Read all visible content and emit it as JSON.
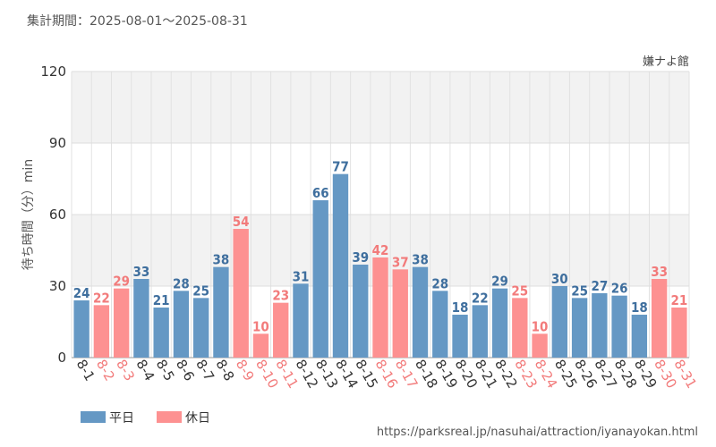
{
  "header": {
    "period_label": "集計期間：2025-08-01～2025-08-31",
    "attraction": "嫌ナよ館",
    "source_url": "https://parksreal.jp/nasuhai/attraction/iyanayokan.html"
  },
  "legend": {
    "weekday": "平日",
    "holiday": "休日"
  },
  "colors": {
    "weekday_bar": "#6598c4",
    "holiday_bar": "#fd9191",
    "weekday_text": "#3f6f9e",
    "holiday_text": "#f27b7b"
  },
  "chart_data": {
    "type": "bar",
    "ylabel": "待ち時間（分）min",
    "ylim": [
      0,
      120
    ],
    "yticks": [
      0,
      30,
      60,
      90,
      120
    ],
    "grid": true,
    "legend_position": "bottom-left",
    "categories": [
      "8-1",
      "8-2",
      "8-3",
      "8-4",
      "8-5",
      "8-6",
      "8-7",
      "8-8",
      "8-9",
      "8-10",
      "8-11",
      "8-12",
      "8-13",
      "8-14",
      "8-15",
      "8-16",
      "8-17",
      "8-18",
      "8-19",
      "8-20",
      "8-21",
      "8-22",
      "8-23",
      "8-24",
      "8-25",
      "8-26",
      "8-27",
      "8-28",
      "8-29",
      "8-30",
      "8-31"
    ],
    "values": [
      24,
      22,
      29,
      33,
      21,
      28,
      25,
      38,
      54,
      10,
      23,
      31,
      66,
      77,
      39,
      42,
      37,
      38,
      28,
      18,
      22,
      29,
      25,
      10,
      30,
      25,
      27,
      26,
      18,
      33,
      21
    ],
    "day_type": [
      "weekday",
      "holiday",
      "holiday",
      "weekday",
      "weekday",
      "weekday",
      "weekday",
      "weekday",
      "holiday",
      "holiday",
      "holiday",
      "weekday",
      "weekday",
      "weekday",
      "weekday",
      "holiday",
      "holiday",
      "weekday",
      "weekday",
      "weekday",
      "weekday",
      "weekday",
      "holiday",
      "holiday",
      "weekday",
      "weekday",
      "weekday",
      "weekday",
      "weekday",
      "holiday",
      "holiday"
    ]
  }
}
